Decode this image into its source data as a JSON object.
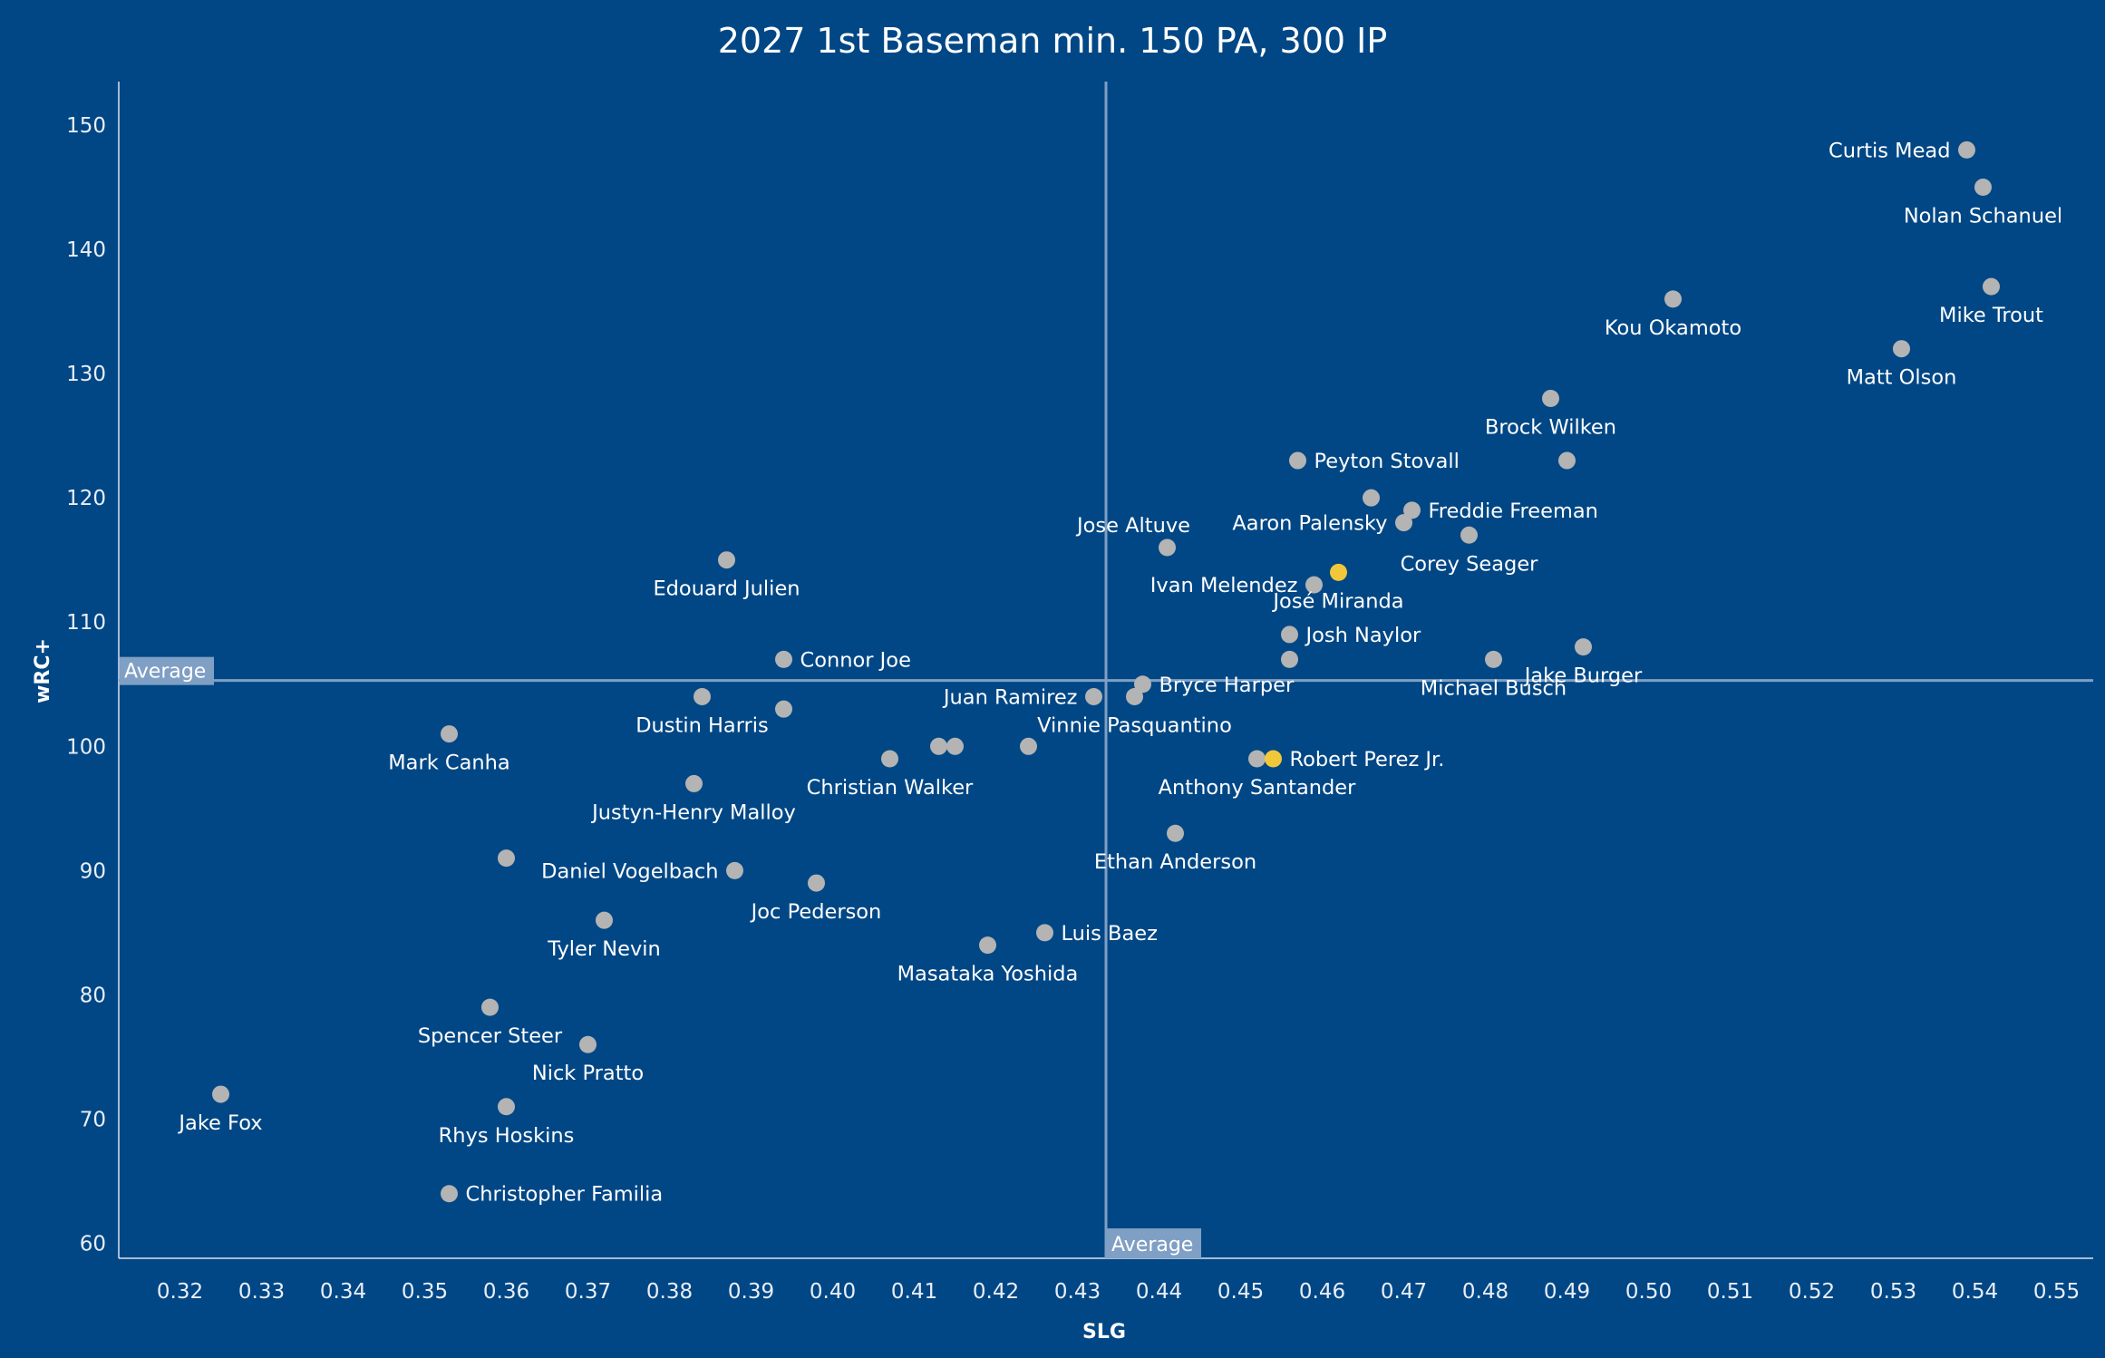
{
  "chart_data": {
    "type": "scatter",
    "title": "2027 1st Baseman min. 150 PA, 300 IP",
    "xlabel": "SLG",
    "ylabel": "wRC+",
    "xlim": [
      0.3125,
      0.5545
    ],
    "ylim": [
      58.8,
      153.5
    ],
    "x_ticks": [
      "0.32",
      "0.33",
      "0.34",
      "0.35",
      "0.36",
      "0.37",
      "0.38",
      "0.39",
      "0.40",
      "0.41",
      "0.42",
      "0.43",
      "0.44",
      "0.45",
      "0.46",
      "0.47",
      "0.48",
      "0.49",
      "0.50",
      "0.51",
      "0.52",
      "0.53",
      "0.54",
      "0.55"
    ],
    "y_ticks": [
      "60",
      "70",
      "80",
      "90",
      "100",
      "110",
      "120",
      "130",
      "140",
      "150"
    ],
    "grid": false,
    "reference_lines": {
      "x": {
        "value": 0.4335,
        "label": "Average"
      },
      "y": {
        "value": 105.3,
        "label": "Average"
      }
    },
    "colors": {
      "background": "#014785",
      "point": "#b4b4b4",
      "highlight": "#f2c73a",
      "reference_line": "#7f9fc4",
      "reference_label_bg": "#7f9fc4"
    },
    "points": [
      {
        "name": "Curtis Mead",
        "x": 0.539,
        "y": 148,
        "label_pos": "left"
      },
      {
        "name": "Nolan Schanuel",
        "x": 0.541,
        "y": 145,
        "label_pos": "below"
      },
      {
        "name": "Mike Trout",
        "x": 0.542,
        "y": 137,
        "label_pos": "below"
      },
      {
        "name": "Kou Okamoto",
        "x": 0.503,
        "y": 136,
        "label_pos": "below"
      },
      {
        "name": "Matt Olson",
        "x": 0.531,
        "y": 132,
        "label_pos": "below"
      },
      {
        "name": "Brock Wilken",
        "x": 0.488,
        "y": 128,
        "label_pos": "below"
      },
      {
        "name": "Peyton Stovall",
        "x": 0.457,
        "y": 123,
        "label_pos": "right"
      },
      {
        "name": "",
        "x": 0.49,
        "y": 123,
        "label_pos": "none"
      },
      {
        "name": "",
        "x": 0.466,
        "y": 120,
        "label_pos": "none"
      },
      {
        "name": "Freddie Freeman",
        "x": 0.471,
        "y": 119,
        "label_pos": "right"
      },
      {
        "name": "Aaron Palensky",
        "x": 0.47,
        "y": 118,
        "label_pos": "left"
      },
      {
        "name": "Corey Seager",
        "x": 0.478,
        "y": 117,
        "label_pos": "below"
      },
      {
        "name": "Jose Altuve",
        "x": 0.441,
        "y": 116,
        "label_pos": "above"
      },
      {
        "name": "Edouard Julien",
        "x": 0.387,
        "y": 115,
        "label_pos": "below"
      },
      {
        "name": "José Miranda",
        "x": 0.462,
        "y": 114,
        "label_pos": "below",
        "highlight": true
      },
      {
        "name": "Ivan Melendez",
        "x": 0.459,
        "y": 113,
        "label_pos": "left"
      },
      {
        "name": "Josh Naylor",
        "x": 0.456,
        "y": 109,
        "label_pos": "right"
      },
      {
        "name": "Jake Burger",
        "x": 0.492,
        "y": 108,
        "label_pos": "below"
      },
      {
        "name": "Connor Joe",
        "x": 0.394,
        "y": 107,
        "label_pos": "right"
      },
      {
        "name": "",
        "x": 0.456,
        "y": 107,
        "label_pos": "none"
      },
      {
        "name": "Michael Busch",
        "x": 0.481,
        "y": 107,
        "label_pos": "below"
      },
      {
        "name": "Bryce Harper",
        "x": 0.438,
        "y": 105,
        "label_pos": "right"
      },
      {
        "name": "Dustin Harris",
        "x": 0.384,
        "y": 104,
        "label_pos": "below"
      },
      {
        "name": "Juan Ramirez",
        "x": 0.432,
        "y": 104,
        "label_pos": "left"
      },
      {
        "name": "Vinnie Pasquantino",
        "x": 0.437,
        "y": 104,
        "label_pos": "below"
      },
      {
        "name": "",
        "x": 0.394,
        "y": 103,
        "label_pos": "none"
      },
      {
        "name": "Mark Canha",
        "x": 0.353,
        "y": 101,
        "label_pos": "below"
      },
      {
        "name": "",
        "x": 0.413,
        "y": 100,
        "label_pos": "none"
      },
      {
        "name": "",
        "x": 0.415,
        "y": 100,
        "label_pos": "none"
      },
      {
        "name": "",
        "x": 0.424,
        "y": 100,
        "label_pos": "none"
      },
      {
        "name": "Christian Walker",
        "x": 0.407,
        "y": 99,
        "label_pos": "below"
      },
      {
        "name": "Anthony Santander",
        "x": 0.452,
        "y": 99,
        "label_pos": "below"
      },
      {
        "name": "Robert Perez Jr.",
        "x": 0.454,
        "y": 99,
        "label_pos": "right",
        "highlight": true
      },
      {
        "name": "Justyn-Henry Malloy",
        "x": 0.383,
        "y": 97,
        "label_pos": "below"
      },
      {
        "name": "Ethan Anderson",
        "x": 0.442,
        "y": 93,
        "label_pos": "below"
      },
      {
        "name": "",
        "x": 0.36,
        "y": 91,
        "label_pos": "none"
      },
      {
        "name": "Daniel Vogelbach",
        "x": 0.388,
        "y": 90,
        "label_pos": "left"
      },
      {
        "name": "Joc Pederson",
        "x": 0.398,
        "y": 89,
        "label_pos": "below"
      },
      {
        "name": "Tyler Nevin",
        "x": 0.372,
        "y": 86,
        "label_pos": "below"
      },
      {
        "name": "Luis Baez",
        "x": 0.426,
        "y": 85,
        "label_pos": "right"
      },
      {
        "name": "Masataka Yoshida",
        "x": 0.419,
        "y": 84,
        "label_pos": "below"
      },
      {
        "name": "Spencer Steer",
        "x": 0.358,
        "y": 79,
        "label_pos": "below"
      },
      {
        "name": "Nick Pratto",
        "x": 0.37,
        "y": 76,
        "label_pos": "below"
      },
      {
        "name": "Jake Fox",
        "x": 0.325,
        "y": 72,
        "label_pos": "below"
      },
      {
        "name": "Rhys Hoskins",
        "x": 0.36,
        "y": 71,
        "label_pos": "below"
      },
      {
        "name": "Christopher Familia",
        "x": 0.353,
        "y": 64,
        "label_pos": "right"
      }
    ]
  }
}
